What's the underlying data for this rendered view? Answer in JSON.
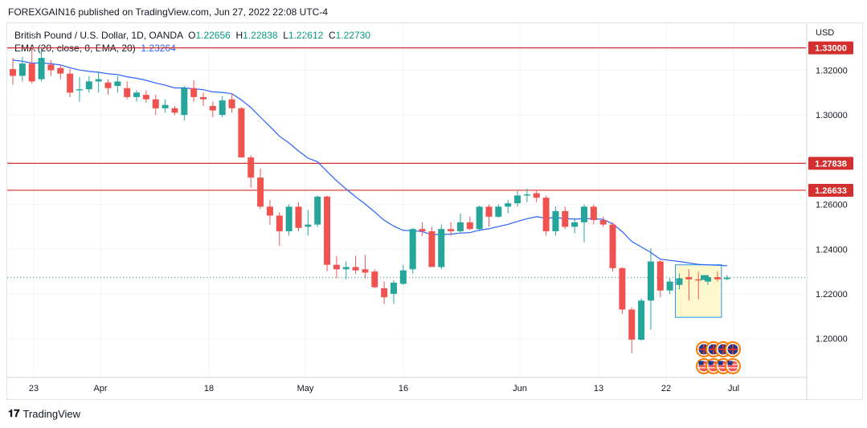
{
  "publish_line": "FOREXGAIN16 published on TradingView.com, Jun 27, 2022 22:08 UTC-4",
  "legend": {
    "symbol": "British Pound / U.S. Dollar, 1D, OANDA",
    "o_label": "O",
    "o": "1.22656",
    "h_label": "H",
    "h": "1.22838",
    "l_label": "L",
    "l": "1.22612",
    "c_label": "C",
    "c": "1.22730",
    "ema_label": "EMA (20, close, 0, EMA, 20)",
    "ema_value": "1.23264"
  },
  "footer": {
    "brand": "TradingView"
  },
  "colors": {
    "up": "#26a69a",
    "down": "#ef5350",
    "ema": "#2962ff",
    "level": "#d32f2f",
    "box_fill": "#fff8cc",
    "box_stroke": "#2196f3"
  },
  "chart_data": {
    "type": "candlestick",
    "currency": "USD",
    "x_tick_labels": [
      "23",
      "Apr",
      "18",
      "May",
      "16",
      "Jun",
      "13",
      "22",
      "Jul"
    ],
    "y_tick_labels": [
      "1.32000",
      "1.30000",
      "1.26000",
      "1.24000",
      "1.22000",
      "1.20000"
    ],
    "ylim": [
      1.183,
      1.341
    ],
    "horizontal_levels": [
      {
        "label": "1.33000",
        "value": 1.33
      },
      {
        "label": "1.27838",
        "value": 1.27838
      },
      {
        "label": "1.26633",
        "value": 1.26633
      }
    ],
    "last_price_line": 1.2273,
    "candles": [
      {
        "o": 1.3205,
        "h": 1.3255,
        "l": 1.3135,
        "c": 1.3175
      },
      {
        "o": 1.3175,
        "h": 1.326,
        "l": 1.315,
        "c": 1.323
      },
      {
        "o": 1.323,
        "h": 1.33,
        "l": 1.314,
        "c": 1.315
      },
      {
        "o": 1.316,
        "h": 1.33,
        "l": 1.315,
        "c": 1.3255
      },
      {
        "o": 1.3225,
        "h": 1.3245,
        "l": 1.3175,
        "c": 1.32
      },
      {
        "o": 1.321,
        "h": 1.3225,
        "l": 1.316,
        "c": 1.3185
      },
      {
        "o": 1.3185,
        "h": 1.3205,
        "l": 1.308,
        "c": 1.31
      },
      {
        "o": 1.311,
        "h": 1.317,
        "l": 1.306,
        "c": 1.3115
      },
      {
        "o": 1.3115,
        "h": 1.3175,
        "l": 1.31,
        "c": 1.315
      },
      {
        "o": 1.315,
        "h": 1.319,
        "l": 1.31,
        "c": 1.316
      },
      {
        "o": 1.3145,
        "h": 1.316,
        "l": 1.309,
        "c": 1.312
      },
      {
        "o": 1.313,
        "h": 1.3175,
        "l": 1.31,
        "c": 1.315
      },
      {
        "o": 1.312,
        "h": 1.315,
        "l": 1.307,
        "c": 1.308
      },
      {
        "o": 1.308,
        "h": 1.311,
        "l": 1.306,
        "c": 1.31
      },
      {
        "o": 1.309,
        "h": 1.311,
        "l": 1.3055,
        "c": 1.307
      },
      {
        "o": 1.307,
        "h": 1.309,
        "l": 1.3,
        "c": 1.303
      },
      {
        "o": 1.303,
        "h": 1.307,
        "l": 1.301,
        "c": 1.3045
      },
      {
        "o": 1.303,
        "h": 1.304,
        "l": 1.3,
        "c": 1.301
      },
      {
        "o": 1.3,
        "h": 1.313,
        "l": 1.2975,
        "c": 1.312
      },
      {
        "o": 1.312,
        "h": 1.3155,
        "l": 1.306,
        "c": 1.308
      },
      {
        "o": 1.308,
        "h": 1.31,
        "l": 1.304,
        "c": 1.307
      },
      {
        "o": 1.304,
        "h": 1.306,
        "l": 1.299,
        "c": 1.302
      },
      {
        "o": 1.3,
        "h": 1.3085,
        "l": 1.299,
        "c": 1.3065
      },
      {
        "o": 1.307,
        "h": 1.3095,
        "l": 1.301,
        "c": 1.303
      },
      {
        "o": 1.303,
        "h": 1.3035,
        "l": 1.281,
        "c": 1.281
      },
      {
        "o": 1.281,
        "h": 1.282,
        "l": 1.2675,
        "c": 1.272
      },
      {
        "o": 1.272,
        "h": 1.276,
        "l": 1.258,
        "c": 1.259
      },
      {
        "o": 1.259,
        "h": 1.262,
        "l": 1.251,
        "c": 1.255
      },
      {
        "o": 1.255,
        "h": 1.2565,
        "l": 1.2415,
        "c": 1.248
      },
      {
        "o": 1.248,
        "h": 1.26,
        "l": 1.246,
        "c": 1.259
      },
      {
        "o": 1.259,
        "h": 1.261,
        "l": 1.248,
        "c": 1.2495
      },
      {
        "o": 1.25,
        "h": 1.2575,
        "l": 1.246,
        "c": 1.251
      },
      {
        "o": 1.251,
        "h": 1.264,
        "l": 1.25,
        "c": 1.2635
      },
      {
        "o": 1.2635,
        "h": 1.264,
        "l": 1.23,
        "c": 1.233
      },
      {
        "o": 1.233,
        "h": 1.237,
        "l": 1.227,
        "c": 1.231
      },
      {
        "o": 1.231,
        "h": 1.2345,
        "l": 1.2265,
        "c": 1.232
      },
      {
        "o": 1.232,
        "h": 1.237,
        "l": 1.229,
        "c": 1.2305
      },
      {
        "o": 1.231,
        "h": 1.2375,
        "l": 1.227,
        "c": 1.2295
      },
      {
        "o": 1.23,
        "h": 1.231,
        "l": 1.2225,
        "c": 1.223
      },
      {
        "o": 1.2225,
        "h": 1.2255,
        "l": 1.2155,
        "c": 1.2185
      },
      {
        "o": 1.22,
        "h": 1.226,
        "l": 1.2155,
        "c": 1.225
      },
      {
        "o": 1.2245,
        "h": 1.233,
        "l": 1.224,
        "c": 1.2305
      },
      {
        "o": 1.231,
        "h": 1.2495,
        "l": 1.229,
        "c": 1.249
      },
      {
        "o": 1.249,
        "h": 1.252,
        "l": 1.246,
        "c": 1.248
      },
      {
        "o": 1.248,
        "h": 1.25,
        "l": 1.232,
        "c": 1.232
      },
      {
        "o": 1.232,
        "h": 1.251,
        "l": 1.231,
        "c": 1.249
      },
      {
        "o": 1.249,
        "h": 1.252,
        "l": 1.246,
        "c": 1.248
      },
      {
        "o": 1.248,
        "h": 1.256,
        "l": 1.247,
        "c": 1.252
      },
      {
        "o": 1.252,
        "h": 1.2545,
        "l": 1.2485,
        "c": 1.249
      },
      {
        "o": 1.249,
        "h": 1.2595,
        "l": 1.248,
        "c": 1.259
      },
      {
        "o": 1.259,
        "h": 1.26,
        "l": 1.25,
        "c": 1.2545
      },
      {
        "o": 1.2545,
        "h": 1.26,
        "l": 1.254,
        "c": 1.259
      },
      {
        "o": 1.259,
        "h": 1.262,
        "l": 1.256,
        "c": 1.2605
      },
      {
        "o": 1.2605,
        "h": 1.266,
        "l": 1.259,
        "c": 1.264
      },
      {
        "o": 1.264,
        "h": 1.267,
        "l": 1.261,
        "c": 1.2645
      },
      {
        "o": 1.265,
        "h": 1.2665,
        "l": 1.261,
        "c": 1.263
      },
      {
        "o": 1.263,
        "h": 1.264,
        "l": 1.246,
        "c": 1.248
      },
      {
        "o": 1.248,
        "h": 1.259,
        "l": 1.246,
        "c": 1.257
      },
      {
        "o": 1.257,
        "h": 1.259,
        "l": 1.249,
        "c": 1.25
      },
      {
        "o": 1.25,
        "h": 1.254,
        "l": 1.247,
        "c": 1.252
      },
      {
        "o": 1.252,
        "h": 1.26,
        "l": 1.243,
        "c": 1.259
      },
      {
        "o": 1.259,
        "h": 1.26,
        "l": 1.251,
        "c": 1.253
      },
      {
        "o": 1.253,
        "h": 1.2545,
        "l": 1.25,
        "c": 1.251
      },
      {
        "o": 1.251,
        "h": 1.252,
        "l": 1.23,
        "c": 1.2315
      },
      {
        "o": 1.2315,
        "h": 1.232,
        "l": 1.211,
        "c": 1.213
      },
      {
        "o": 1.213,
        "h": 1.214,
        "l": 1.1935,
        "c": 1.1995
      },
      {
        "o": 1.1995,
        "h": 1.218,
        "l": 1.199,
        "c": 1.217
      },
      {
        "o": 1.217,
        "h": 1.2405,
        "l": 1.204,
        "c": 1.2345
      },
      {
        "o": 1.2345,
        "h": 1.235,
        "l": 1.2185,
        "c": 1.2215
      },
      {
        "o": 1.2215,
        "h": 1.227,
        "l": 1.22,
        "c": 1.2255
      },
      {
        "o": 1.224,
        "h": 1.229,
        "l": 1.222,
        "c": 1.227
      },
      {
        "o": 1.2275,
        "h": 1.231,
        "l": 1.217,
        "c": 1.2265
      },
      {
        "o": 1.2265,
        "h": 1.23,
        "l": 1.2175,
        "c": 1.226
      },
      {
        "o": 1.2255,
        "h": 1.228,
        "l": 1.224,
        "c": 1.2275
      },
      {
        "o": 1.2275,
        "h": 1.23,
        "l": 1.2255,
        "c": 1.2265
      },
      {
        "o": 1.2266,
        "h": 1.2284,
        "l": 1.2261,
        "c": 1.2273
      }
    ],
    "ema_20": [
      1.3245,
      1.324,
      1.3232,
      1.3233,
      1.3229,
      1.3224,
      1.3211,
      1.3201,
      1.3195,
      1.3191,
      1.3184,
      1.3181,
      1.3171,
      1.3164,
      1.3155,
      1.3143,
      1.3133,
      1.3121,
      1.3121,
      1.3117,
      1.3113,
      1.3103,
      1.3101,
      1.3095,
      1.3067,
      1.3033,
      1.299,
      1.2949,
      1.2905,
      1.2875,
      1.2839,
      1.2807,
      1.2791,
      1.2747,
      1.2706,
      1.2669,
      1.2634,
      1.2602,
      1.2566,
      1.2529,
      1.2503,
      1.2484,
      1.2482,
      1.2479,
      1.2464,
      1.2466,
      1.2467,
      1.2472,
      1.2474,
      1.2485,
      1.2491,
      1.2501,
      1.2511,
      1.2524,
      1.2536,
      1.2545,
      1.2539,
      1.2541,
      1.2537,
      1.2534,
      1.2537,
      1.2536,
      1.2533,
      1.2513,
      1.2478,
      1.2434,
      1.241,
      1.2385,
      1.2355,
      1.235,
      1.2345,
      1.2338,
      1.2332,
      1.233,
      1.2328,
      1.2326
    ]
  }
}
